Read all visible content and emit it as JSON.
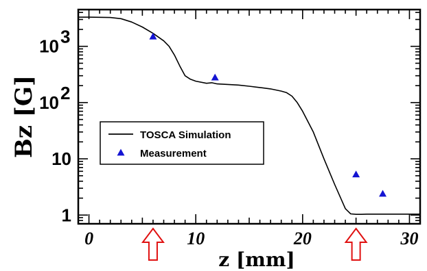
{
  "chart_data": {
    "type": "line",
    "xlabel": "z [mm]",
    "ylabel": "Bz [G]",
    "xlim": [
      -1,
      31
    ],
    "ylim": [
      0.7,
      4500
    ],
    "yscale": "log",
    "xticks": [
      "0",
      "10",
      "20",
      "30"
    ],
    "yticks": [
      {
        "value": 1000,
        "base": "10",
        "exp": "3"
      },
      {
        "value": 100,
        "base": "10",
        "exp": "2"
      },
      {
        "value": 10,
        "base": "10",
        "exp": ""
      },
      {
        "value": 1,
        "base": "1",
        "exp": ""
      }
    ],
    "grid": false,
    "legend": {
      "position": "center-left",
      "entries": [
        "TOSCA Simulation",
        "Measurement"
      ]
    },
    "series": [
      {
        "name": "TOSCA Simulation",
        "style": "line",
        "color": "#000000",
        "x": [
          -1,
          0,
          2,
          3,
          4,
          5,
          6,
          7,
          7.5,
          8,
          8.5,
          9,
          9.5,
          10,
          11,
          11.5,
          12,
          13,
          14,
          15,
          16,
          17,
          18,
          18.5,
          19,
          19.5,
          20,
          21,
          22,
          23,
          24,
          24.5,
          25,
          25.5,
          26,
          28,
          30,
          31
        ],
        "y": [
          3300,
          3300,
          3250,
          3100,
          2700,
          2200,
          1700,
          1250,
          1000,
          700,
          450,
          300,
          260,
          240,
          220,
          225,
          215,
          210,
          205,
          195,
          185,
          175,
          160,
          150,
          130,
          100,
          70,
          30,
          10,
          3.5,
          1.3,
          1.05,
          1.03,
          1.03,
          1.04,
          1.04,
          1.04,
          1.04
        ]
      },
      {
        "name": "Measurement",
        "style": "marker",
        "marker": "triangle",
        "color": "#1414d2",
        "x": [
          6,
          11.8,
          25,
          27.5
        ],
        "y": [
          1500,
          280,
          5.3,
          2.4
        ]
      }
    ],
    "annotations": [
      {
        "type": "arrow-up",
        "x": 6,
        "color": "#e01010"
      },
      {
        "type": "arrow-up",
        "x": 25,
        "color": "#e01010"
      }
    ]
  }
}
